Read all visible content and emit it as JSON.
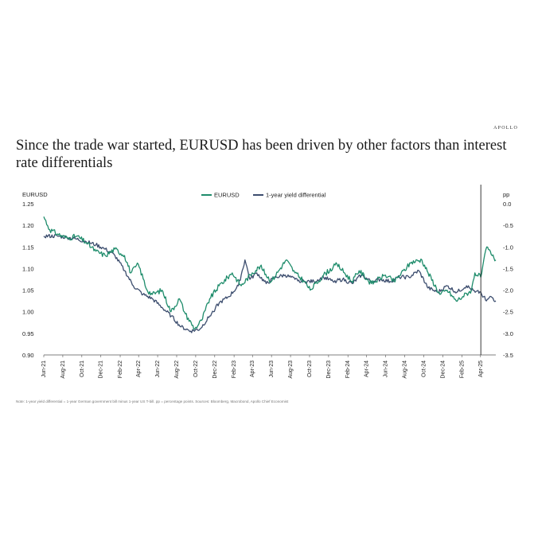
{
  "brand": "APOLLO",
  "title": "Since the trade war started, EURUSD has been driven by other factors than interest rate differentials",
  "note": "Note: 1-year yield differential = 1-year German government bill minus 1-year US T-bill. pp = percentage points. Sources: Bloomberg, Macrobond, Apollo Chief Economist",
  "colors": {
    "eurusd": "#1e8c6b",
    "differential": "#3c4d6e",
    "event_line": "#222222"
  },
  "chart_data": {
    "type": "line",
    "left_axis_title": "EURUSD",
    "right_axis_title": "pp",
    "legend_position": "top-center",
    "grid": false,
    "left_ylim": [
      0.9,
      1.25
    ],
    "right_ylim": [
      -3.5,
      0.0
    ],
    "left_ticks": [
      "1.25",
      "1.20",
      "1.15",
      "1.10",
      "1.05",
      "1.00",
      "0.95",
      "0.90"
    ],
    "right_ticks": [
      "0.0",
      "-0.5",
      "-1.0",
      "-1.5",
      "-2.0",
      "-2.5",
      "-3.0",
      "-3.5"
    ],
    "x_ticks": [
      "Jun-21",
      "Aug-21",
      "Oct-21",
      "Dec-21",
      "Feb-22",
      "Apr-22",
      "Jun-22",
      "Aug-22",
      "Oct-22",
      "Dec-22",
      "Feb-23",
      "Apr-23",
      "Jun-23",
      "Aug-23",
      "Oct-23",
      "Dec-23",
      "Feb-24",
      "Apr-24",
      "Jun-24",
      "Aug-24",
      "Oct-24",
      "Dec-24",
      "Feb-25",
      "Apr-25"
    ],
    "vertical_marker": "2025-04-02",
    "series": [
      {
        "name": "EURUSD",
        "axis": "left",
        "points": [
          [
            "2021-06-01",
            1.22
          ],
          [
            "2021-06-20",
            1.19
          ],
          [
            "2021-07-15",
            1.18
          ],
          [
            "2021-08-15",
            1.17
          ],
          [
            "2021-09-15",
            1.175
          ],
          [
            "2021-10-15",
            1.16
          ],
          [
            "2021-11-15",
            1.14
          ],
          [
            "2021-12-15",
            1.13
          ],
          [
            "2022-01-15",
            1.145
          ],
          [
            "2022-02-15",
            1.13
          ],
          [
            "2022-03-07",
            1.09
          ],
          [
            "2022-03-31",
            1.11
          ],
          [
            "2022-04-28",
            1.05
          ],
          [
            "2022-05-15",
            1.04
          ],
          [
            "2022-06-15",
            1.05
          ],
          [
            "2022-07-14",
            1.0
          ],
          [
            "2022-08-10",
            1.03
          ],
          [
            "2022-08-29",
            0.995
          ],
          [
            "2022-09-28",
            0.96
          ],
          [
            "2022-10-20",
            0.98
          ],
          [
            "2022-11-15",
            1.03
          ],
          [
            "2022-12-15",
            1.06
          ],
          [
            "2023-01-26",
            1.09
          ],
          [
            "2023-02-24",
            1.06
          ],
          [
            "2023-03-31",
            1.09
          ],
          [
            "2023-04-26",
            1.105
          ],
          [
            "2023-05-31",
            1.07
          ],
          [
            "2023-07-18",
            1.12
          ],
          [
            "2023-08-15",
            1.09
          ],
          [
            "2023-09-15",
            1.07
          ],
          [
            "2023-10-03",
            1.05
          ],
          [
            "2023-11-15",
            1.085
          ],
          [
            "2023-12-28",
            1.11
          ],
          [
            "2024-02-14",
            1.07
          ],
          [
            "2024-03-08",
            1.095
          ],
          [
            "2024-04-16",
            1.065
          ],
          [
            "2024-05-31",
            1.085
          ],
          [
            "2024-06-28",
            1.07
          ],
          [
            "2024-08-23",
            1.115
          ],
          [
            "2024-09-25",
            1.12
          ],
          [
            "2024-10-15",
            1.09
          ],
          [
            "2024-11-22",
            1.04
          ],
          [
            "2024-12-15",
            1.05
          ],
          [
            "2025-01-13",
            1.025
          ],
          [
            "2025-02-03",
            1.035
          ],
          [
            "2025-03-03",
            1.05
          ],
          [
            "2025-03-14",
            1.09
          ],
          [
            "2025-04-02",
            1.08
          ],
          [
            "2025-04-21",
            1.15
          ],
          [
            "2025-05-08",
            1.13
          ],
          [
            "2025-05-20",
            1.12
          ]
        ]
      },
      {
        "name": "1-year yield differential",
        "axis": "right",
        "points": [
          [
            "2021-06-01",
            -0.75
          ],
          [
            "2021-07-15",
            -0.75
          ],
          [
            "2021-08-15",
            -0.78
          ],
          [
            "2021-09-15",
            -0.82
          ],
          [
            "2021-10-15",
            -0.88
          ],
          [
            "2021-11-15",
            -0.95
          ],
          [
            "2021-12-15",
            -1.05
          ],
          [
            "2022-01-15",
            -1.2
          ],
          [
            "2022-02-15",
            -1.55
          ],
          [
            "2022-03-15",
            -1.9
          ],
          [
            "2022-04-15",
            -2.1
          ],
          [
            "2022-05-15",
            -2.2
          ],
          [
            "2022-06-15",
            -2.4
          ],
          [
            "2022-07-15",
            -2.6
          ],
          [
            "2022-08-15",
            -2.85
          ],
          [
            "2022-09-15",
            -2.95
          ],
          [
            "2022-10-15",
            -2.9
          ],
          [
            "2022-11-15",
            -2.6
          ],
          [
            "2022-12-15",
            -2.3
          ],
          [
            "2023-01-15",
            -2.15
          ],
          [
            "2023-02-15",
            -1.9
          ],
          [
            "2023-03-08",
            -1.3
          ],
          [
            "2023-03-24",
            -1.75
          ],
          [
            "2023-04-15",
            -1.6
          ],
          [
            "2023-05-15",
            -1.85
          ],
          [
            "2023-06-15",
            -1.7
          ],
          [
            "2023-07-15",
            -1.65
          ],
          [
            "2023-08-15",
            -1.75
          ],
          [
            "2023-09-15",
            -1.8
          ],
          [
            "2023-10-15",
            -1.8
          ],
          [
            "2023-11-15",
            -1.7
          ],
          [
            "2023-12-15",
            -1.8
          ],
          [
            "2024-01-15",
            -1.75
          ],
          [
            "2024-02-15",
            -1.85
          ],
          [
            "2024-03-15",
            -1.65
          ],
          [
            "2024-04-15",
            -1.8
          ],
          [
            "2024-05-15",
            -1.75
          ],
          [
            "2024-06-15",
            -1.8
          ],
          [
            "2024-07-15",
            -1.7
          ],
          [
            "2024-08-15",
            -1.7
          ],
          [
            "2024-09-15",
            -1.55
          ],
          [
            "2024-10-15",
            -1.95
          ],
          [
            "2024-11-15",
            -2.05
          ],
          [
            "2024-12-15",
            -1.9
          ],
          [
            "2025-01-15",
            -2.05
          ],
          [
            "2025-02-15",
            -1.9
          ],
          [
            "2025-03-15",
            -2.05
          ],
          [
            "2025-04-02",
            -2.05
          ],
          [
            "2025-04-20",
            -2.25
          ],
          [
            "2025-05-05",
            -2.15
          ],
          [
            "2025-05-20",
            -2.25
          ]
        ]
      }
    ]
  }
}
